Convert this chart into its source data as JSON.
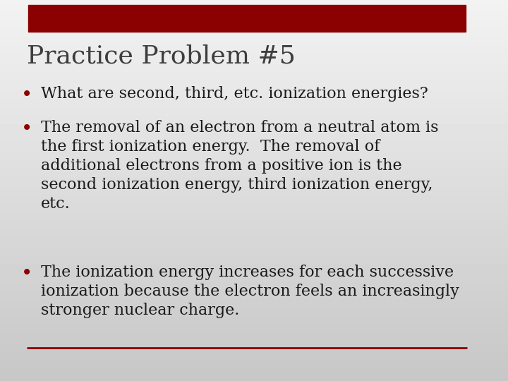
{
  "title": "Practice Problem #5",
  "title_fontsize": 26,
  "title_color": "#3d3d3d",
  "bg_color": "#c8c8c8",
  "header_bar_color": "#8B0000",
  "bullet_color": "#8B0000",
  "text_color": "#1a1a1a",
  "footer_line_color": "#8B0000",
  "bullet_points": [
    "What are second, third, etc. ionization energies?",
    "The removal of an electron from a neutral atom is\nthe first ionization energy.  The removal of\nadditional electrons from a positive ion is the\nsecond ionization energy, third ionization energy,\netc.",
    "The ionization energy increases for each successive\nionization because the electron feels an increasingly\nstronger nuclear charge."
  ],
  "text_fontsize": 16,
  "text_font": "serif"
}
